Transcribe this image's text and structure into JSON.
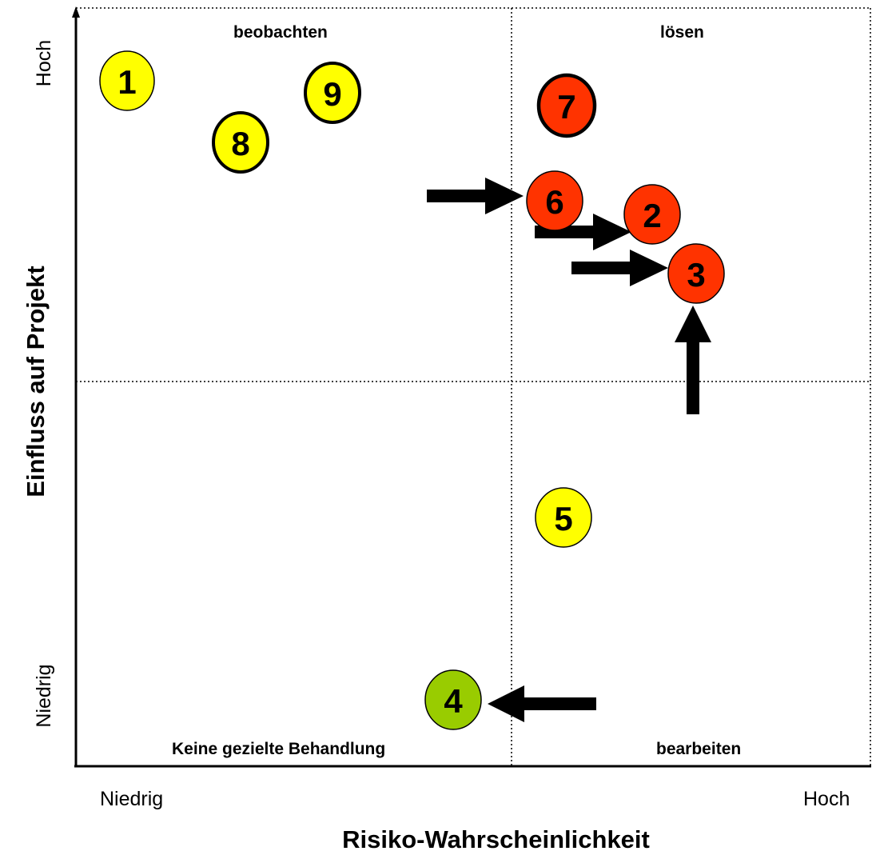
{
  "quadrants": {
    "top_left": "beobachten",
    "top_right": "lösen",
    "bottom_left": "Keine gezielte Behandlung",
    "bottom_right": "bearbeiten"
  },
  "axes": {
    "x_title": "Risiko-Wahrscheinlichkeit",
    "x_low": "Niedrig",
    "x_high": "Hoch",
    "y_title": "Einfluss auf Projekt",
    "y_low": "Niedrig",
    "y_high": "Hoch"
  },
  "colors": {
    "yellow": "#ffff00",
    "red": "#ff3300",
    "green": "#99cc00"
  },
  "risks": [
    {
      "label": "1",
      "color": "yellow"
    },
    {
      "label": "2",
      "color": "red"
    },
    {
      "label": "3",
      "color": "red"
    },
    {
      "label": "4",
      "color": "green"
    },
    {
      "label": "5",
      "color": "yellow"
    },
    {
      "label": "6",
      "color": "red"
    },
    {
      "label": "7",
      "color": "red"
    },
    {
      "label": "8",
      "color": "yellow"
    },
    {
      "label": "9",
      "color": "yellow"
    }
  ]
}
